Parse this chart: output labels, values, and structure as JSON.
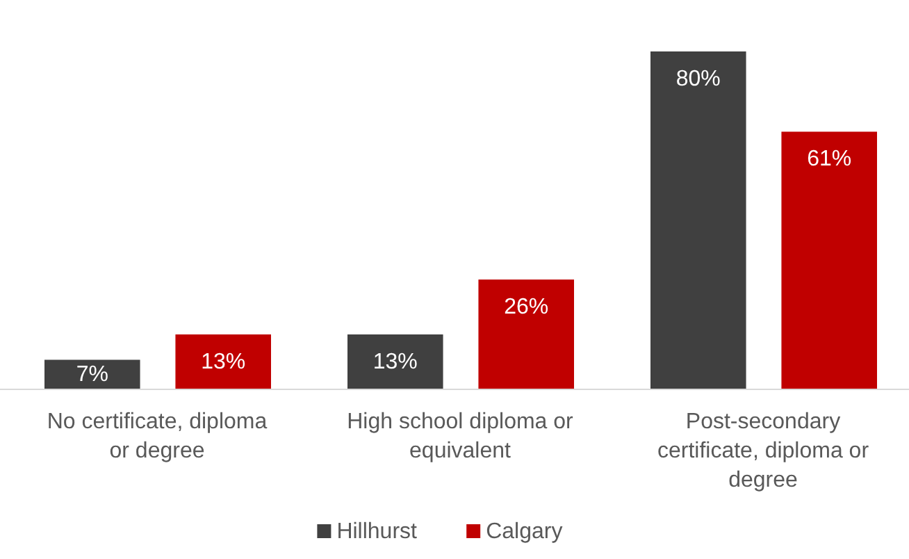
{
  "chart_data": {
    "type": "bar",
    "categories": [
      "No certificate, diploma or degree",
      "High school diploma or equivalent",
      "Post-secondary certificate, diploma or degree"
    ],
    "series": [
      {
        "name": "Hillhurst",
        "color": "#404040",
        "values": [
          7,
          13,
          80
        ],
        "value_labels": [
          "7%",
          "13%",
          "80%"
        ]
      },
      {
        "name": "Calgary",
        "color": "#c00000",
        "values": [
          13,
          26,
          61
        ],
        "value_labels": [
          "13%",
          "26%",
          "61%"
        ]
      }
    ],
    "legend": "bottom",
    "grid": false
  }
}
